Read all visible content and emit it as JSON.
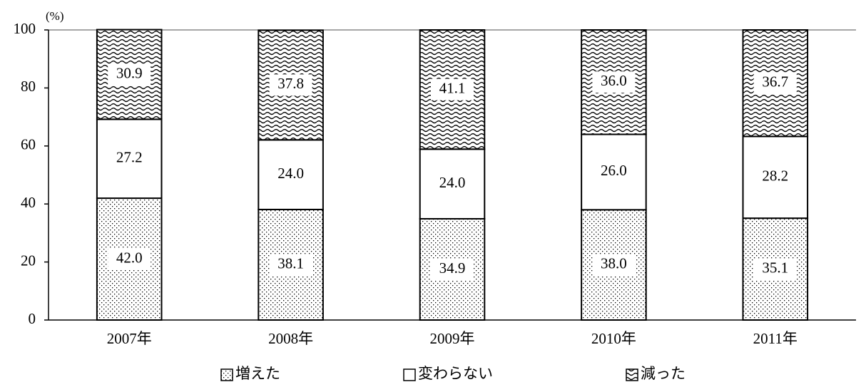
{
  "chart_data": {
    "type": "stacked_bar",
    "unit_label": "(%)",
    "categories": [
      "2007年",
      "2008年",
      "2009年",
      "2010年",
      "2011年"
    ],
    "series": [
      {
        "name": "増えた",
        "color": "#000000",
        "pattern": "dots",
        "values": [
          42.0,
          38.1,
          34.9,
          38.0,
          35.1
        ],
        "value_labels": [
          "42.0",
          "38.1",
          "34.9",
          "38.0",
          "35.1"
        ]
      },
      {
        "name": "変わらない",
        "color": "#000000",
        "pattern": "none",
        "values": [
          27.2,
          24.0,
          24.0,
          26.0,
          28.2
        ],
        "value_labels": [
          "27.2",
          "24.0",
          "24.0",
          "26.0",
          "28.2"
        ]
      },
      {
        "name": "減った",
        "color": "#000000",
        "pattern": "waves",
        "values": [
          30.9,
          37.8,
          41.1,
          36.0,
          36.7
        ],
        "value_labels": [
          "30.9",
          "37.8",
          "41.1",
          "36.0",
          "36.7"
        ]
      }
    ],
    "ylim": [
      0,
      100
    ],
    "yticks": [
      0,
      20,
      40,
      60,
      80,
      100
    ],
    "legend": "bottom"
  }
}
